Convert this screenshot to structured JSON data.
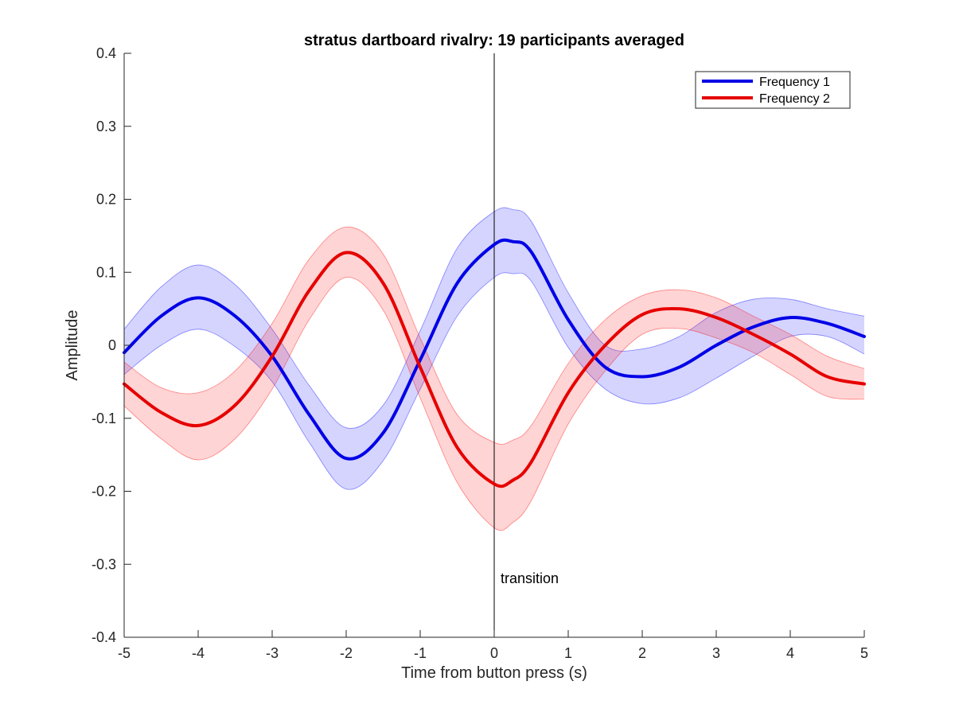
{
  "chart_data": {
    "type": "line",
    "title": "stratus dartboard rivalry: 19 participants averaged",
    "xlabel": "Time from button press (s)",
    "ylabel": "Amplitude",
    "xlim": [
      -5,
      5
    ],
    "ylim": [
      -0.4,
      0.4
    ],
    "xticks": [
      -5,
      -4,
      -3,
      -2,
      -1,
      0,
      1,
      2,
      3,
      4,
      5
    ],
    "xtick_labels": [
      "-5",
      "-4",
      "-3",
      "-2",
      "-1",
      "0",
      "1",
      "2",
      "3",
      "4",
      "5"
    ],
    "yticks": [
      -0.4,
      -0.3,
      -0.2,
      -0.1,
      0,
      0.1,
      0.2,
      0.3,
      0.4
    ],
    "ytick_labels": [
      "-0.4",
      "-0.3",
      "-0.2",
      "-0.1",
      "0",
      "0.1",
      "0.2",
      "0.3",
      "0.4"
    ],
    "grid": false,
    "legend_position": "top-right",
    "annotation": {
      "text": "transition",
      "x": 0,
      "vline_x": 0
    },
    "x": [
      -5,
      -4.5,
      -4,
      -3.5,
      -3,
      -2.5,
      -2,
      -1.5,
      -1,
      -0.5,
      0,
      0.25,
      0.5,
      1,
      1.5,
      2,
      2.5,
      3,
      3.5,
      4,
      4.5,
      5
    ],
    "series": [
      {
        "name": "Frequency 1",
        "color": "#0000e6",
        "shade_color": "#0000ff",
        "values": [
          -0.01,
          0.04,
          0.065,
          0.04,
          -0.015,
          -0.095,
          -0.155,
          -0.12,
          -0.02,
          0.085,
          0.138,
          0.142,
          0.128,
          0.035,
          -0.03,
          -0.043,
          -0.03,
          0.0,
          0.025,
          0.038,
          0.03,
          0.012
        ],
        "upper": [
          0.022,
          0.08,
          0.11,
          0.083,
          0.022,
          -0.055,
          -0.113,
          -0.082,
          0.02,
          0.133,
          0.183,
          0.186,
          0.17,
          0.072,
          0.0,
          -0.005,
          0.012,
          0.045,
          0.063,
          0.063,
          0.05,
          0.04
        ],
        "lower": [
          -0.04,
          0.0,
          0.022,
          -0.002,
          -0.05,
          -0.133,
          -0.197,
          -0.158,
          -0.06,
          0.04,
          0.093,
          0.098,
          0.088,
          -0.003,
          -0.06,
          -0.08,
          -0.072,
          -0.045,
          -0.015,
          0.012,
          0.012,
          -0.012
        ]
      },
      {
        "name": "Frequency 2",
        "color": "#e60000",
        "shade_color": "#ff0000",
        "values": [
          -0.053,
          -0.092,
          -0.11,
          -0.082,
          -0.015,
          0.075,
          0.127,
          0.085,
          -0.03,
          -0.14,
          -0.19,
          -0.185,
          -0.16,
          -0.065,
          0.0,
          0.042,
          0.05,
          0.038,
          0.015,
          -0.012,
          -0.043,
          -0.053
        ],
        "upper": [
          -0.023,
          -0.058,
          -0.065,
          -0.035,
          0.03,
          0.118,
          0.162,
          0.125,
          0.01,
          -0.095,
          -0.133,
          -0.13,
          -0.11,
          -0.025,
          0.035,
          0.068,
          0.076,
          0.065,
          0.04,
          0.015,
          -0.015,
          -0.032
        ],
        "lower": [
          -0.083,
          -0.128,
          -0.157,
          -0.128,
          -0.06,
          0.035,
          0.093,
          0.048,
          -0.072,
          -0.188,
          -0.25,
          -0.243,
          -0.213,
          -0.108,
          -0.035,
          0.015,
          0.023,
          0.01,
          -0.01,
          -0.04,
          -0.07,
          -0.074
        ]
      }
    ]
  }
}
